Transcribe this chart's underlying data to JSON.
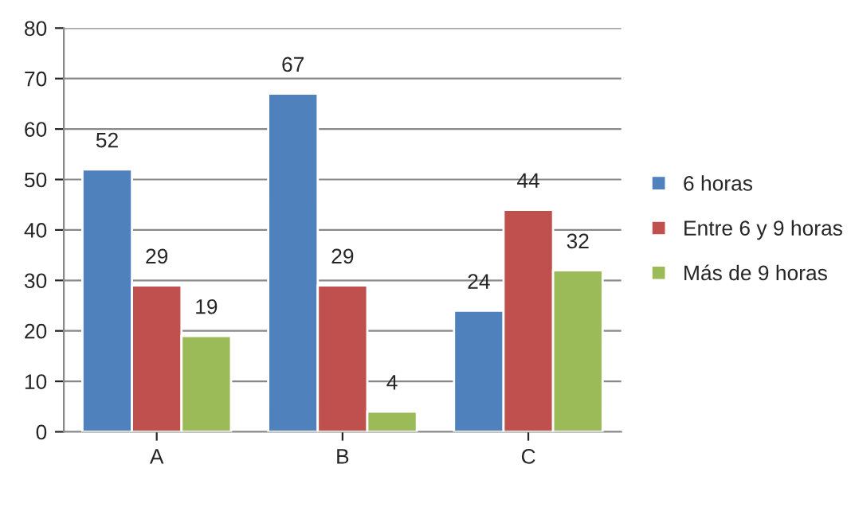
{
  "chart_data": {
    "type": "bar",
    "categories": [
      "A",
      "B",
      "C"
    ],
    "series": [
      {
        "name": "6 horas",
        "color": "#4f81bd",
        "values": [
          52,
          67,
          24
        ]
      },
      {
        "name": "Entre 6 y 9 horas",
        "color": "#c0504d",
        "values": [
          29,
          29,
          44
        ]
      },
      {
        "name": "Más de 9 horas",
        "color": "#9bbb59",
        "values": [
          19,
          4,
          32
        ]
      }
    ],
    "ylim": [
      0,
      80
    ],
    "yticks": [
      0,
      10,
      20,
      30,
      40,
      50,
      60,
      70,
      80
    ],
    "grid": "y",
    "legend": "right",
    "data_labels": true
  }
}
